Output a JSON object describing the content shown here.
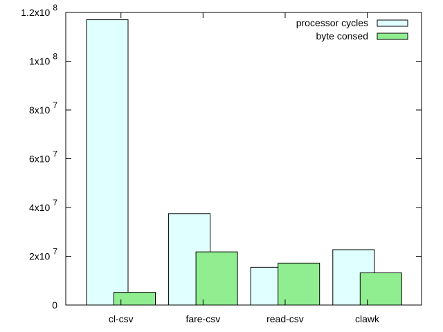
{
  "chart_data": {
    "type": "bar",
    "title": "",
    "xlabel": "",
    "ylabel": "",
    "categories": [
      "cl-csv",
      "fare-csv",
      "read-csv",
      "clawk"
    ],
    "series": [
      {
        "name": "processor cycles",
        "values": [
          117000000,
          37500000,
          15500000,
          22700000
        ],
        "color": "#e0ffff"
      },
      {
        "name": "byte consed",
        "values": [
          5200000,
          21800000,
          17200000,
          13200000
        ],
        "color": "#90ee90"
      }
    ],
    "ylim": [
      0,
      120000000
    ],
    "yticks": [
      {
        "value": 0,
        "mantissa": "0",
        "exponent": ""
      },
      {
        "value": 20000000,
        "mantissa": "2x10",
        "exponent": "7"
      },
      {
        "value": 40000000,
        "mantissa": "4x10",
        "exponent": "7"
      },
      {
        "value": 60000000,
        "mantissa": "6x10",
        "exponent": "7"
      },
      {
        "value": 80000000,
        "mantissa": "8x10",
        "exponent": "7"
      },
      {
        "value": 100000000,
        "mantissa": "1x10",
        "exponent": "8"
      },
      {
        "value": 120000000,
        "mantissa": "1.2x10",
        "exponent": "8"
      }
    ],
    "grid": false,
    "legend_position": "top-right"
  }
}
